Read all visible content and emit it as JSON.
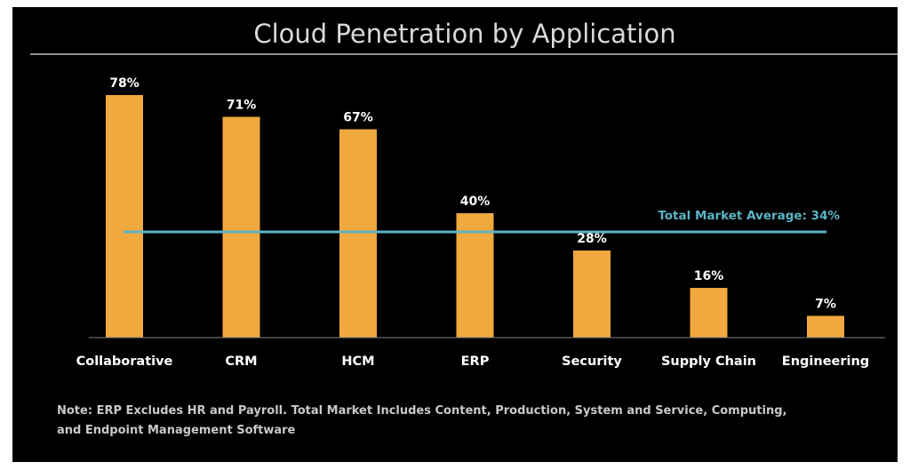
{
  "chart_data": {
    "type": "bar",
    "title": "Cloud Penetration by Application",
    "categories": [
      "Collaborative",
      "CRM",
      "HCM",
      "ERP",
      "Security",
      "Supply Chain",
      "Engineering"
    ],
    "values": [
      78,
      71,
      67,
      40,
      28,
      16,
      7
    ],
    "value_labels": [
      "78%",
      "71%",
      "67%",
      "40%",
      "28%",
      "16%",
      "7%"
    ],
    "unit": "%",
    "ylim": [
      0,
      80
    ],
    "grid": false,
    "legend": "none",
    "annotation": {
      "label": "Total Market Average: 34%",
      "value": 34
    },
    "note_lines": [
      "Note: ERP Excludes HR and Payroll. Total Market Includes Content, Production, System and Service, Computing,",
      "and Endpoint Management Software"
    ],
    "colors": {
      "background": "#000000",
      "bar": "#f0a93e",
      "average_line": "#5bb3c4",
      "title": "#d9d9d9",
      "rule": "#bfbfbf",
      "axis": "#7f7f7f"
    }
  }
}
